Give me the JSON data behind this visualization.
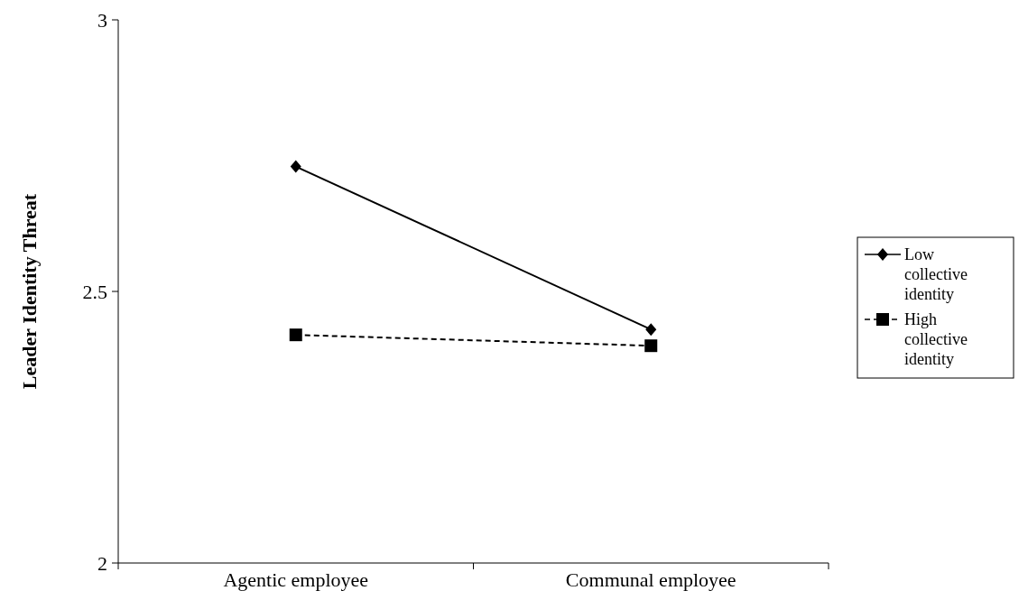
{
  "chart_data": {
    "type": "line",
    "ylabel": "Leader Identity Threat",
    "categories": [
      "Agentic employee",
      "Communal employee"
    ],
    "series": [
      {
        "name": "Low collective identity",
        "color": "#000000",
        "values": [
          2.73,
          2.43
        ],
        "marker": "diamond",
        "line_style": "solid"
      },
      {
        "name": "High collective identity",
        "color": "#000000",
        "values": [
          2.42,
          2.4
        ],
        "marker": "square",
        "line_style": "dashed"
      }
    ],
    "ylim": [
      2,
      3
    ],
    "yticks": [
      2,
      2.5,
      3
    ],
    "grid": false,
    "legend": "right"
  }
}
